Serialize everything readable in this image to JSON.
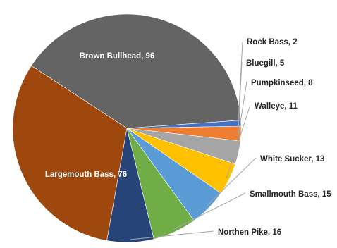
{
  "chart_data": {
    "type": "pie",
    "title": "",
    "slices": [
      {
        "label": "Brown Bullhead",
        "value": 96,
        "color": "#646464",
        "text": "Brown Bullhead, 96"
      },
      {
        "label": "Rock Bass",
        "value": 2,
        "color": "#4472c4",
        "text": "Rock Bass, 2"
      },
      {
        "label": "Bluegill",
        "value": 5,
        "color": "#ed7d31",
        "text": "Bluegill, 5"
      },
      {
        "label": "Pumpkinseed",
        "value": 8,
        "color": "#a5a5a5",
        "text": "Pumpkinseed, 8"
      },
      {
        "label": "Walleye",
        "value": 11,
        "color": "#ffc000",
        "text": "Walleye, 11"
      },
      {
        "label": "White Sucker",
        "value": 13,
        "color": "#5b9bd5",
        "text": "White Sucker, 13"
      },
      {
        "label": "Smallmouth Bass",
        "value": 15,
        "color": "#70ad47",
        "text": "Smallmouth Bass, 15"
      },
      {
        "label": "Northen Pike",
        "value": 16,
        "color": "#264478",
        "text": "Northen Pike, 16"
      },
      {
        "label": "Largemouth Bass",
        "value": 76,
        "color": "#9e480e",
        "text": "Largemouth Bass, 76"
      }
    ],
    "start_angle_deg": -90,
    "direction": "clockwise-from-brown-bullhead-start",
    "labels_inside": [
      "Brown Bullhead",
      "Largemouth Bass"
    ],
    "legend": "none"
  }
}
